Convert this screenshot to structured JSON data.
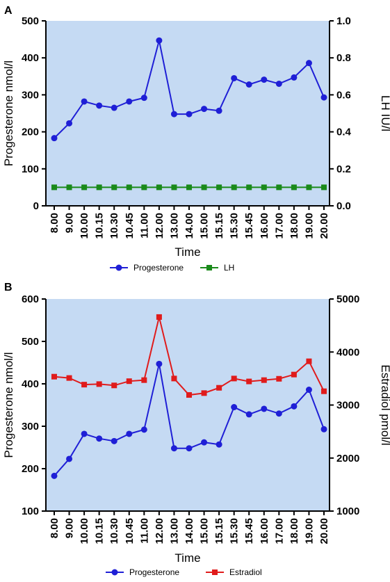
{
  "chart_data": [
    {
      "panel_label": "A",
      "type": "line",
      "categories": [
        "8.00",
        "9.00",
        "10.00",
        "10.15",
        "10.30",
        "10.45",
        "11.00",
        "12.00",
        "13.00",
        "14.00",
        "15.00",
        "15.15",
        "15.30",
        "15.45",
        "16.00",
        "17.00",
        "18.00",
        "19.00",
        "20.00"
      ],
      "xlabel": "Time",
      "ylabel": "Progesterone nmol/l",
      "ylim": [
        0,
        500
      ],
      "yticks": [
        "0",
        "100",
        "200",
        "300",
        "400",
        "500"
      ],
      "y2label": "LH IU/l",
      "y2lim": [
        0,
        1.0
      ],
      "y2ticks": [
        "0.0",
        "0.2",
        "0.4",
        "0.6",
        "0.8",
        "1.0"
      ],
      "background": "#c5daf3",
      "series": [
        {
          "name": "Progesterone",
          "axis": "left",
          "color": "#1f1fd6",
          "marker": "circle",
          "values": [
            183,
            223,
            282,
            271,
            265,
            282,
            292,
            447,
            248,
            248,
            262,
            257,
            345,
            328,
            341,
            330,
            347,
            386,
            293
          ]
        },
        {
          "name": "LH",
          "axis": "right",
          "color": "#1a8a1a",
          "marker": "square",
          "values": [
            0.1,
            0.1,
            0.1,
            0.1,
            0.1,
            0.1,
            0.1,
            0.1,
            0.1,
            0.1,
            0.1,
            0.1,
            0.1,
            0.1,
            0.1,
            0.1,
            0.1,
            0.1,
            0.1
          ]
        }
      ],
      "legend_placement": "bottom"
    },
    {
      "panel_label": "B",
      "type": "line",
      "categories": [
        "8.00",
        "9.00",
        "10.00",
        "10.15",
        "10.30",
        "10.45",
        "11.00",
        "12.00",
        "13.00",
        "14.00",
        "15.00",
        "15.15",
        "15.30",
        "15.45",
        "16.00",
        "17.00",
        "18.00",
        "19.00",
        "20.00"
      ],
      "xlabel": "Time",
      "ylabel": "Progesterone nmol/l",
      "ylim": [
        100,
        600
      ],
      "yticks": [
        "100",
        "200",
        "300",
        "400",
        "500",
        "600"
      ],
      "y2label": "Estradiol pmol/l",
      "y2lim": [
        1000,
        5000
      ],
      "y2ticks": [
        "1000",
        "2000",
        "3000",
        "4000",
        "5000"
      ],
      "background": "#c5daf3",
      "series": [
        {
          "name": "Progesterone",
          "axis": "left",
          "color": "#1f1fd6",
          "marker": "circle",
          "values": [
            183,
            223,
            282,
            271,
            265,
            282,
            292,
            447,
            248,
            248,
            262,
            257,
            345,
            328,
            341,
            330,
            347,
            386,
            293
          ]
        },
        {
          "name": "Estradiol",
          "axis": "right",
          "color": "#e01b1b",
          "marker": "square",
          "values": [
            3535,
            3510,
            3385,
            3395,
            3370,
            3450,
            3470,
            4660,
            3500,
            3190,
            3225,
            3325,
            3500,
            3445,
            3470,
            3495,
            3575,
            3825,
            3260
          ]
        }
      ],
      "legend_placement": "bottom"
    }
  ]
}
